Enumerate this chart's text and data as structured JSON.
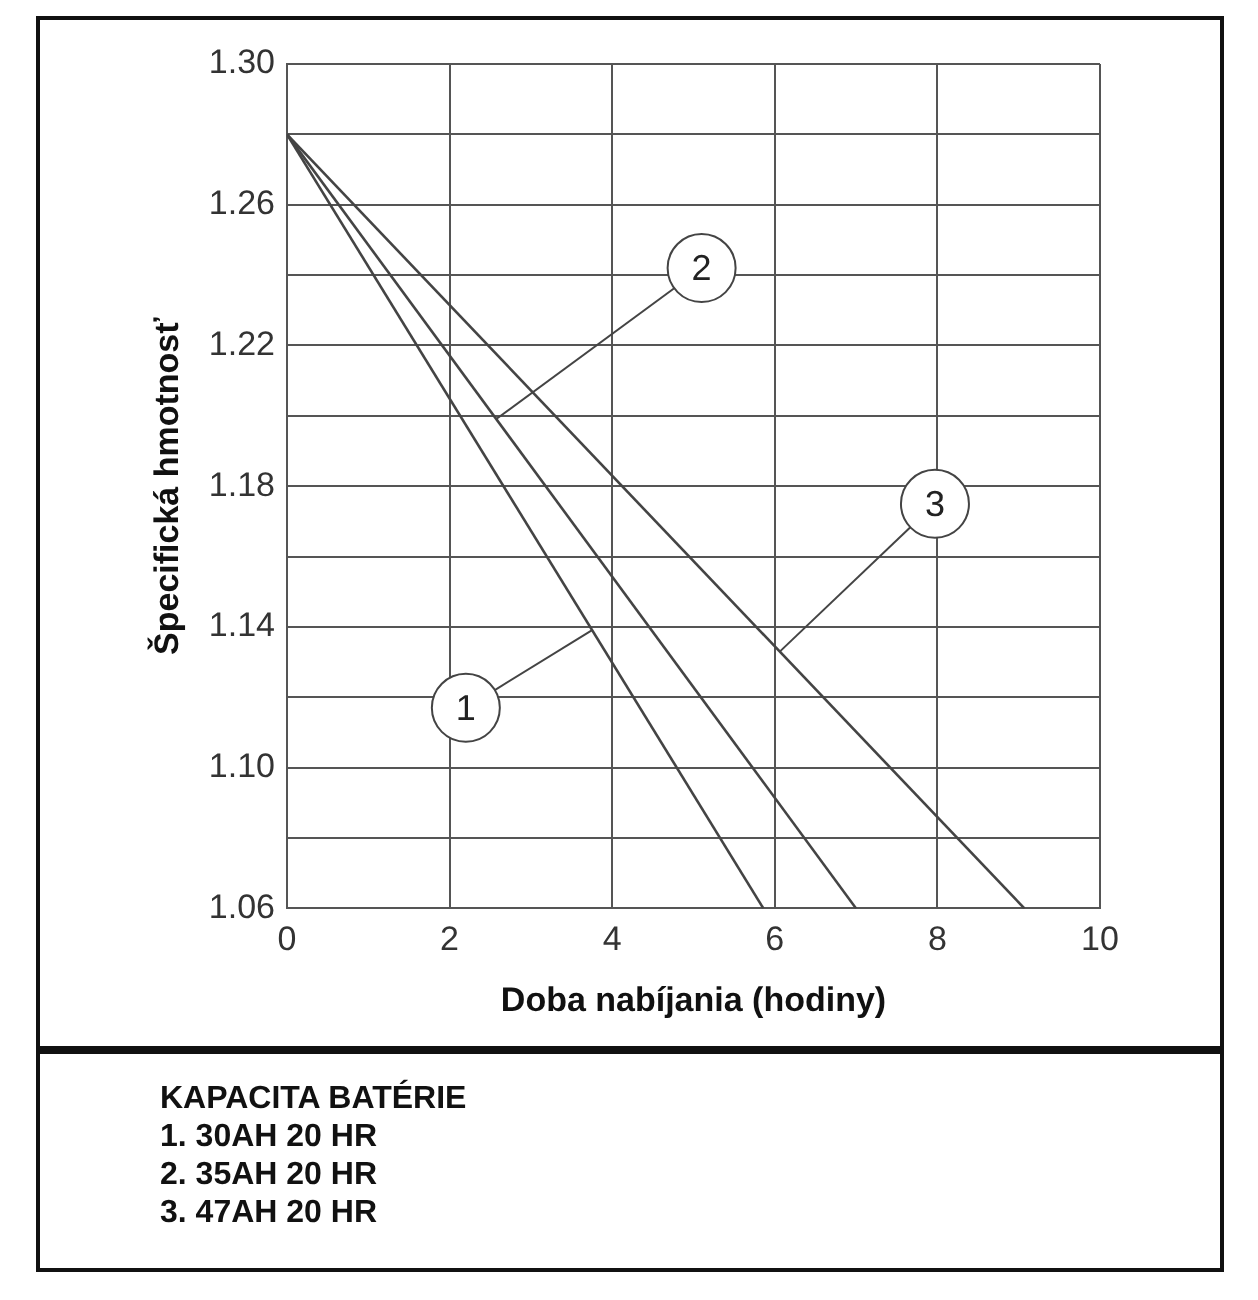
{
  "chart_data": {
    "type": "line",
    "xlabel": "Doba nabíjania (hodiny)",
    "ylabel": "Špecifická hmotnosť",
    "series": [
      {
        "color": "#444444",
        "x": [
          0,
          5.86
        ],
        "values": [
          1.28,
          1.06
        ]
      },
      {
        "color": "#444444",
        "x": [
          0,
          7.0
        ],
        "values": [
          1.28,
          1.06
        ]
      },
      {
        "color": "#444444",
        "x": [
          0,
          9.07
        ],
        "values": [
          1.28,
          1.06
        ]
      }
    ],
    "xlim": [
      0,
      10
    ],
    "xticks": [
      0,
      2,
      4,
      6,
      8,
      10
    ],
    "ylim": [
      1.06,
      1.3
    ],
    "yticks": [
      1.06,
      {
        "value": 1.08,
        "label": null
      },
      {
        "value": 1.1,
        "label": "1.10"
      },
      {
        "value": 1.12,
        "label": null
      },
      1.14,
      {
        "value": 1.16,
        "label": null
      },
      1.18,
      {
        "value": 1.2,
        "label": null
      },
      1.22,
      {
        "value": 1.24,
        "label": null
      },
      1.26,
      {
        "value": 1.28,
        "label": null
      },
      {
        "value": 1.3,
        "label": "1.30"
      }
    ],
    "grid": true,
    "marker": "none",
    "line_style": "solid",
    "legend": false,
    "annotations": [
      {
        "text": "1",
        "x": 2.2,
        "y": 1.117
      },
      {
        "text": "2",
        "x": 5.1,
        "y": 1.242
      },
      {
        "text": "3",
        "x": 7.97,
        "y": 1.175
      },
      "KAPACITA BATÉRIE",
      "1. 30AH 20 HR",
      "2. 35AH 20 HR",
      "3. 47AH 20 HR"
    ]
  }
}
